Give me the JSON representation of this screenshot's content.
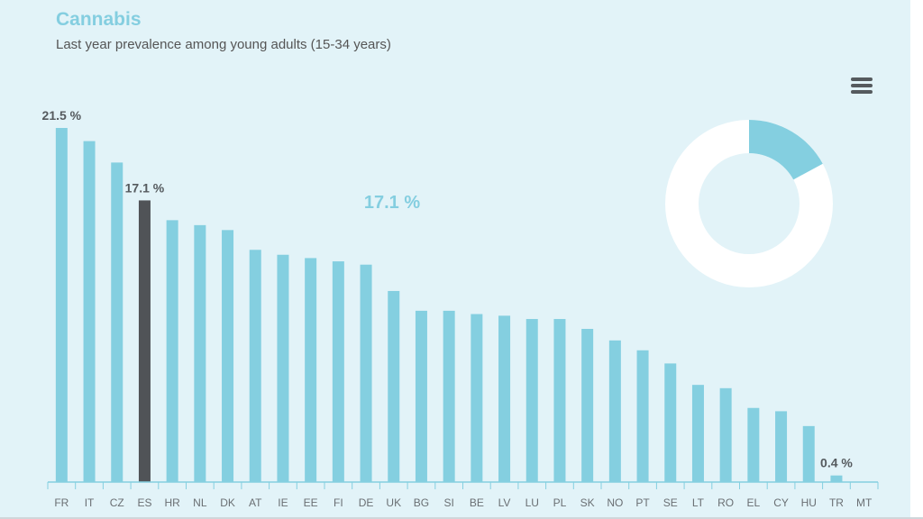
{
  "colors": {
    "bar": "#84cfe0",
    "highlight": "#505357",
    "axis": "#84cfe0",
    "donut_fill": "#84cfe0",
    "donut_ring": "#ffffff"
  },
  "menu": {
    "icon": "hamburger-menu-icon"
  },
  "chart_data": {
    "type": "bar",
    "title": "Cannabis",
    "subtitle": "Last year prevalence among young adults (15-34 years)",
    "xlabel": "",
    "ylabel": "",
    "ylim": [
      0,
      21.5
    ],
    "categories": [
      "FR",
      "IT",
      "CZ",
      "ES",
      "HR",
      "NL",
      "DK",
      "AT",
      "IE",
      "EE",
      "FI",
      "DE",
      "UK",
      "BG",
      "SI",
      "BE",
      "LV",
      "LU",
      "PL",
      "SK",
      "NO",
      "PT",
      "SE",
      "LT",
      "RO",
      "EL",
      "CY",
      "HU",
      "TR",
      "MT"
    ],
    "values": [
      21.5,
      20.7,
      19.4,
      17.1,
      15.9,
      15.6,
      15.3,
      14.1,
      13.8,
      13.6,
      13.4,
      13.2,
      11.6,
      10.4,
      10.4,
      10.2,
      10.1,
      9.9,
      9.9,
      9.3,
      8.6,
      8.0,
      7.2,
      5.9,
      5.7,
      4.5,
      4.3,
      3.4,
      0.4,
      0
    ],
    "highlighted": "ES",
    "labels": {
      "max": "21.5 %",
      "selected": "17.1 %",
      "min": "0.4 %"
    },
    "highlight_value_text": "17.1 %",
    "donut_percent": 17.1
  }
}
